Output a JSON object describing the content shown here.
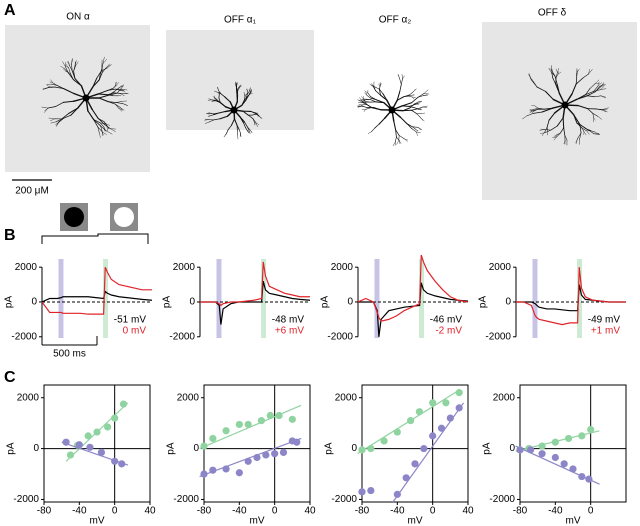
{
  "panel_labels": [
    "A",
    "B",
    "C"
  ],
  "cells": [
    "ON α",
    "OFF α₁",
    "OFF α₂",
    "OFF δ"
  ],
  "scale_bar": "200 μM",
  "chart_data": [
    {
      "type": "line",
      "ylabel": "pA",
      "xlim": [
        0,
        1000
      ],
      "ylim": [
        -2300,
        2700
      ],
      "yticks": [
        -2000,
        0,
        2000
      ],
      "bands": [
        {
          "x": [
            150,
            195
          ],
          "color": "#bcb8e0"
        },
        {
          "x": [
            555,
            600
          ],
          "color": "#c4e8cc"
        }
      ],
      "time_scale": {
        "value": 500,
        "label": "500 ms"
      },
      "x": [
        0,
        70,
        140,
        175,
        190,
        210,
        280,
        350,
        420,
        490,
        560,
        575,
        595,
        630,
        700,
        770,
        840,
        910,
        1000
      ],
      "series": [
        {
          "name": "-51 mV",
          "color": "#000000",
          "values": [
            0,
            200,
            200,
            250,
            300,
            300,
            300,
            300,
            300,
            250,
            200,
            600,
            500,
            400,
            300,
            250,
            200,
            150,
            100
          ]
        },
        {
          "name": "0 mV",
          "color": "#e0232a",
          "values": [
            0,
            -600,
            -600,
            -600,
            -650,
            -650,
            -650,
            -650,
            -700,
            -700,
            -700,
            2000,
            1700,
            1300,
            1000,
            900,
            800,
            700,
            700
          ]
        }
      ]
    },
    {
      "type": "line",
      "ylabel": "pA",
      "xlim": [
        0,
        1000
      ],
      "ylim": [
        -2300,
        2700
      ],
      "yticks": [
        -2000,
        0,
        2000
      ],
      "bands": [
        {
          "x": [
            150,
            195
          ],
          "color": "#bcb8e0"
        },
        {
          "x": [
            555,
            600
          ],
          "color": "#c4e8cc"
        }
      ],
      "x": [
        0,
        70,
        140,
        175,
        190,
        210,
        280,
        350,
        420,
        490,
        560,
        575,
        595,
        630,
        700,
        770,
        840,
        910,
        1000
      ],
      "series": [
        {
          "name": "-48 mV",
          "color": "#000000",
          "values": [
            0,
            0,
            0,
            -200,
            -1300,
            -400,
            -100,
            0,
            0,
            0,
            0,
            1200,
            700,
            500,
            400,
            300,
            200,
            150,
            100
          ]
        },
        {
          "name": "+6 mV",
          "color": "#e0232a",
          "values": [
            0,
            0,
            0,
            -100,
            -200,
            -100,
            0,
            0,
            50,
            100,
            200,
            2300,
            1500,
            900,
            700,
            500,
            400,
            300,
            300
          ]
        }
      ]
    },
    {
      "type": "line",
      "ylabel": "pA",
      "xlim": [
        0,
        1000
      ],
      "ylim": [
        -2300,
        2700
      ],
      "yticks": [
        -2000,
        0,
        2000
      ],
      "bands": [
        {
          "x": [
            150,
            195
          ],
          "color": "#bcb8e0"
        },
        {
          "x": [
            555,
            600
          ],
          "color": "#c4e8cc"
        }
      ],
      "x": [
        0,
        70,
        140,
        175,
        190,
        210,
        280,
        350,
        420,
        490,
        560,
        575,
        595,
        630,
        700,
        770,
        840,
        910,
        1000
      ],
      "series": [
        {
          "name": "-46 mV",
          "color": "#000000",
          "values": [
            0,
            0,
            0,
            -500,
            -2000,
            -1000,
            -500,
            -400,
            -300,
            -250,
            -200,
            1100,
            700,
            500,
            350,
            250,
            150,
            100,
            50
          ]
        },
        {
          "name": "-2 mV",
          "color": "#e0232a",
          "values": [
            0,
            200,
            0,
            -600,
            -900,
            -1100,
            -1000,
            -800,
            -500,
            -300,
            -100,
            2700,
            2300,
            1800,
            1200,
            700,
            300,
            100,
            0
          ]
        }
      ]
    },
    {
      "type": "line",
      "ylabel": "pA",
      "xlim": [
        0,
        1000
      ],
      "ylim": [
        -2300,
        2700
      ],
      "yticks": [
        -2000,
        0,
        2000
      ],
      "bands": [
        {
          "x": [
            150,
            195
          ],
          "color": "#bcb8e0"
        },
        {
          "x": [
            555,
            600
          ],
          "color": "#c4e8cc"
        }
      ],
      "x": [
        0,
        70,
        140,
        175,
        190,
        210,
        280,
        350,
        420,
        490,
        560,
        575,
        595,
        630,
        700,
        770,
        840,
        910,
        1000
      ],
      "series": [
        {
          "name": "-49 mV",
          "color": "#000000",
          "values": [
            0,
            0,
            0,
            -100,
            -200,
            -300,
            -400,
            -400,
            -450,
            -500,
            -500,
            1000,
            400,
            150,
            100,
            50,
            0,
            0,
            0
          ]
        },
        {
          "name": "+1 mV",
          "color": "#e0232a",
          "values": [
            0,
            0,
            -200,
            -800,
            -900,
            -1000,
            -1100,
            -1200,
            -1300,
            -1200,
            -1200,
            2000,
            800,
            300,
            100,
            50,
            0,
            0,
            0
          ]
        }
      ]
    },
    {
      "type": "scatter",
      "xlabel": "mV",
      "ylabel": "pA",
      "xlim": [
        -80,
        40
      ],
      "ylim": [
        -2100,
        2500
      ],
      "xticks": [
        -80,
        -40,
        0,
        40
      ],
      "yticks": [
        -2000,
        0,
        2000
      ],
      "series": [
        {
          "color": "#8fd4a0",
          "x": [
            -50,
            -42,
            -30,
            -20,
            -8,
            0,
            10
          ],
          "values": [
            -250,
            130,
            500,
            650,
            850,
            1200,
            1750
          ],
          "fit": {
            "x": [
              -55,
              15
            ],
            "y": [
              -500,
              1800
            ]
          }
        },
        {
          "color": "#8c86c8",
          "x": [
            -55,
            -40,
            -28,
            -15,
            0,
            8
          ],
          "values": [
            250,
            150,
            50,
            -150,
            -500,
            -600
          ],
          "fit": {
            "x": [
              -60,
              15
            ],
            "y": [
              250,
              -650
            ]
          }
        }
      ]
    },
    {
      "type": "scatter",
      "xlabel": "mV",
      "ylabel": "pA",
      "xlim": [
        -80,
        40
      ],
      "ylim": [
        -2100,
        2500
      ],
      "xticks": [
        -80,
        -40,
        0,
        40
      ],
      "yticks": [
        -2000,
        0,
        2000
      ],
      "series": [
        {
          "color": "#8fd4a0",
          "x": [
            -80,
            -70,
            -55,
            -40,
            -30,
            -15,
            -5,
            5,
            20
          ],
          "values": [
            100,
            400,
            700,
            950,
            950,
            1100,
            1300,
            1300,
            1150
          ],
          "fit": {
            "x": [
              -85,
              30
            ],
            "y": [
              0,
              1700
            ]
          }
        },
        {
          "color": "#8c86c8",
          "x": [
            -80,
            -70,
            -55,
            -40,
            -30,
            -20,
            -10,
            0,
            10,
            20,
            25
          ],
          "values": [
            -1000,
            -850,
            -800,
            -950,
            -500,
            -350,
            -250,
            -200,
            -150,
            300,
            250
          ],
          "fit": {
            "x": [
              -85,
              30
            ],
            "y": [
              -1100,
              400
            ]
          }
        }
      ]
    },
    {
      "type": "scatter",
      "xlabel": "mV",
      "ylabel": "pA",
      "xlim": [
        -80,
        40
      ],
      "ylim": [
        -2100,
        2500
      ],
      "xticks": [
        -80,
        -40,
        0,
        40
      ],
      "yticks": [
        -2000,
        0,
        2000
      ],
      "series": [
        {
          "color": "#8fd4a0",
          "x": [
            -80,
            -70,
            -55,
            -40,
            -25,
            -15,
            0,
            15,
            30
          ],
          "values": [
            -50,
            0,
            300,
            650,
            1100,
            1450,
            1800,
            1800,
            2200
          ],
          "fit": {
            "x": [
              -85,
              30
            ],
            "y": [
              -200,
              2300
            ]
          }
        },
        {
          "color": "#8c86c8",
          "x": [
            -80,
            -70,
            -40,
            -30,
            -20,
            -10,
            0,
            10,
            20,
            30
          ],
          "values": [
            -1700,
            -1650,
            -1800,
            -1150,
            -600,
            0,
            500,
            800,
            1200,
            1600
          ],
          "fit": {
            "x": [
              -45,
              35
            ],
            "y": [
              -2100,
              1800
            ]
          }
        }
      ]
    },
    {
      "type": "scatter",
      "xlabel": "mV",
      "ylabel": "pA",
      "xlim": [
        -80,
        40
      ],
      "ylim": [
        -2100,
        2500
      ],
      "xticks": [
        -80,
        -40,
        0
      ],
      "yticks": [
        -2000,
        0,
        2000
      ],
      "series": [
        {
          "color": "#8fd4a0",
          "x": [
            -80,
            -70,
            -55,
            -40,
            -25,
            -10,
            0
          ],
          "values": [
            -50,
            0,
            100,
            250,
            400,
            500,
            750
          ],
          "fit": {
            "x": [
              -85,
              10
            ],
            "y": [
              -100,
              700
            ]
          }
        },
        {
          "color": "#8c86c8",
          "x": [
            -80,
            -68,
            -55,
            -40,
            -30,
            -20,
            -10,
            -2
          ],
          "values": [
            -50,
            -50,
            -200,
            -350,
            -600,
            -800,
            -1100,
            -1200
          ],
          "fit": {
            "x": [
              -85,
              10
            ],
            "y": [
              100,
              -1400
            ]
          }
        }
      ]
    }
  ]
}
